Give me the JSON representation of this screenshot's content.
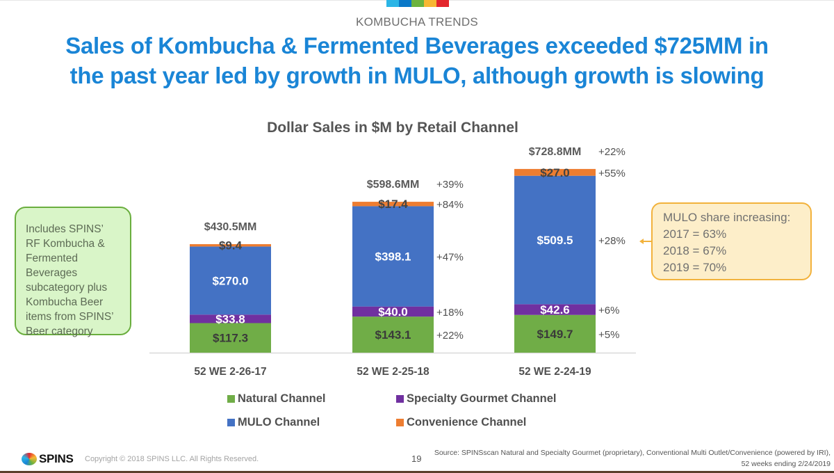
{
  "header": {
    "kicker": "KOMBUCHA TRENDS",
    "headline_line1": "Sales of Kombucha & Fermented Beverages exceeded $725MM in",
    "headline_line2": "the past year led by growth in MULO, although growth is slowing",
    "stripe_colors": [
      "#2bb5e6",
      "#0a78c8",
      "#6cb33f",
      "#f7b733",
      "#e3262d"
    ]
  },
  "chart_data": {
    "type": "bar",
    "stacked": true,
    "title": "Dollar Sales in $M by Retail Channel",
    "xlabel": "",
    "ylabel": "",
    "categories": [
      "52 WE 2-26-17",
      "52 WE 2-25-18",
      "52 WE 2-24-19"
    ],
    "series": [
      {
        "name": "Natural Channel",
        "color": "#70ad47",
        "values": [
          117.3,
          143.1,
          149.7
        ],
        "labels": [
          "$117.3",
          "$143.1",
          "$149.7"
        ],
        "growth": [
          null,
          "+22%",
          "+5%"
        ],
        "label_color": "#3a3a3a"
      },
      {
        "name": "Specialty Gourmet Channel",
        "color": "#7030a0",
        "values": [
          33.8,
          40.0,
          42.6
        ],
        "labels": [
          "$33.8",
          "$40.0",
          "$42.6"
        ],
        "growth": [
          null,
          "+18%",
          "+6%"
        ],
        "label_color": "#ffffff"
      },
      {
        "name": "MULO Channel",
        "color": "#4472c4",
        "values": [
          270.0,
          398.1,
          509.5
        ],
        "labels": [
          "$270.0",
          "$398.1",
          "$509.5"
        ],
        "growth": [
          null,
          "+47%",
          "+28%"
        ],
        "label_color": "#ffffff"
      },
      {
        "name": "Convenience Channel",
        "color": "#ed7d31",
        "values": [
          9.4,
          17.4,
          27.0
        ],
        "labels": [
          "$9.4",
          "$17.4",
          "$27.0"
        ],
        "growth": [
          null,
          "+84%",
          "+55%"
        ],
        "label_color": "#444444"
      }
    ],
    "totals": [
      430.5,
      598.6,
      728.8
    ],
    "total_labels": [
      "$430.5MM",
      "$598.6MM",
      "$728.8MM"
    ],
    "total_growth": [
      null,
      "+39%",
      "+22%"
    ],
    "ylim": [
      0,
      730
    ],
    "grid": false,
    "legend": [
      "Natural Channel",
      "Specialty Gourmet Channel",
      "MULO Channel",
      "Convenience Channel"
    ],
    "legend_position": "bottom"
  },
  "notes": {
    "scope": [
      "Includes SPINS’",
      "RF Kombucha &",
      "Fermented",
      "Beverages",
      "subcategory plus",
      "Kombucha Beer",
      "items from SPINS’",
      "Beer category"
    ],
    "mulo_share": [
      "MULO share increasing:",
      "2017 = 63%",
      "2018 = 67%",
      "2019 = 70%"
    ]
  },
  "footer": {
    "logo": "SPINS",
    "copyright": "Copyright © 2018 SPINS LLC. All Rights Reserved.",
    "page_number": "19",
    "source_line1": "Source: SPINSscan Natural and Specialty Gourmet (proprietary), Conventional Multi Outlet/Convenience (powered by IRI),",
    "source_line2": "52 weeks ending 2/24/2019"
  }
}
